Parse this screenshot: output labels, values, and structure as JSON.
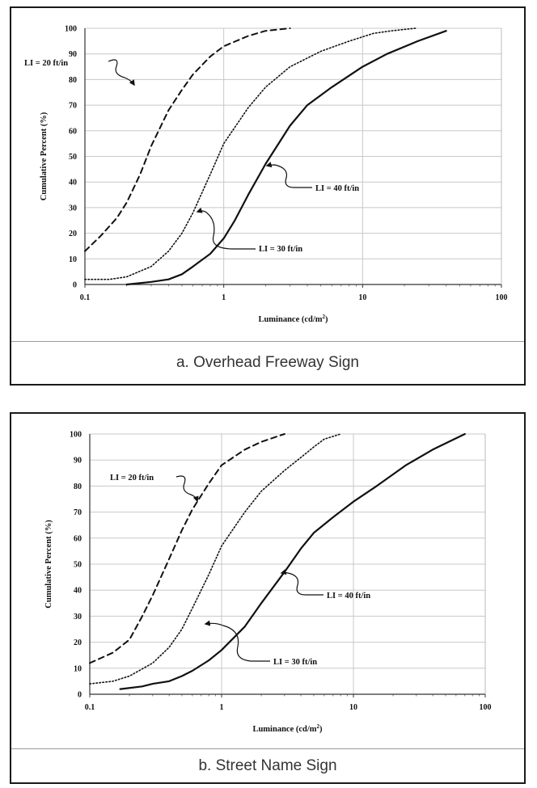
{
  "chart_data": [
    {
      "type": "line",
      "caption": "a. Overhead Freeway Sign",
      "xlabel": "Luminance (cd/m",
      "xlabel_sup": "2",
      "xlabel_end": ")",
      "ylabel": "Cumulative Percent (%)",
      "xscale": "log",
      "xlim": [
        0.1,
        100
      ],
      "ylim": [
        0,
        100
      ],
      "xticks": [
        "0.1",
        "1",
        "10",
        "100"
      ],
      "yticks": [
        "0",
        "10",
        "20",
        "30",
        "40",
        "50",
        "60",
        "70",
        "80",
        "90",
        "100"
      ],
      "grid": true,
      "series": [
        {
          "name": "LI = 20 ft/in",
          "style": "dashed",
          "x": [
            0.1,
            0.13,
            0.17,
            0.2,
            0.25,
            0.3,
            0.4,
            0.5,
            0.6,
            0.8,
            1.0,
            1.5,
            2.0,
            3.0
          ],
          "y": [
            13,
            19,
            26,
            32,
            43,
            54,
            68,
            76,
            82,
            89,
            93,
            97,
            99,
            100
          ]
        },
        {
          "name": "LI = 30 ft/in",
          "style": "dotted",
          "x": [
            0.1,
            0.15,
            0.2,
            0.3,
            0.4,
            0.5,
            0.6,
            0.8,
            1.0,
            1.5,
            2.0,
            3.0,
            5.0,
            8.0,
            12.0,
            16.0,
            24.0
          ],
          "y": [
            2,
            2,
            3,
            7,
            13,
            20,
            28,
            43,
            55,
            69,
            77,
            85,
            91,
            95,
            98,
            99,
            100
          ]
        },
        {
          "name": "LI = 40 ft/in",
          "style": "solid",
          "x": [
            0.2,
            0.3,
            0.4,
            0.5,
            0.6,
            0.8,
            1.0,
            1.2,
            1.5,
            2.0,
            3.0,
            4.0,
            6.0,
            10.0,
            15.0,
            25.0,
            40.0
          ],
          "y": [
            0,
            1,
            2,
            4,
            7,
            12,
            18,
            25,
            35,
            47,
            62,
            70,
            77,
            85,
            90,
            95,
            99
          ]
        }
      ]
    },
    {
      "type": "line",
      "caption": "b. Street Name Sign",
      "xlabel": "Luminance (cd/m",
      "xlabel_sup": "2",
      "xlabel_end": ")",
      "ylabel": "Cumulative Percent (%)",
      "xscale": "log",
      "xlim": [
        0.1,
        100
      ],
      "ylim": [
        0,
        100
      ],
      "xticks": [
        "0.1",
        "1",
        "10",
        "100"
      ],
      "yticks": [
        "0",
        "10",
        "20",
        "30",
        "40",
        "50",
        "60",
        "70",
        "80",
        "90",
        "100"
      ],
      "grid": true,
      "series": [
        {
          "name": "LI = 20 ft/in",
          "style": "dashed",
          "x": [
            0.1,
            0.15,
            0.2,
            0.25,
            0.3,
            0.4,
            0.5,
            0.6,
            0.8,
            1.0,
            1.5,
            2.0,
            3.0
          ],
          "y": [
            12,
            16,
            21,
            30,
            38,
            52,
            63,
            71,
            81,
            88,
            94,
            97,
            100
          ]
        },
        {
          "name": "LI = 30 ft/in",
          "style": "dotted",
          "x": [
            0.1,
            0.15,
            0.2,
            0.3,
            0.4,
            0.5,
            0.6,
            0.8,
            1.0,
            1.5,
            2.0,
            3.0,
            4.0,
            5.0,
            6.0,
            8.0
          ],
          "y": [
            4,
            5,
            7,
            12,
            18,
            25,
            33,
            46,
            57,
            70,
            78,
            86,
            91,
            95,
            98,
            100
          ]
        },
        {
          "name": "LI = 40 ft/in",
          "style": "solid",
          "x": [
            0.17,
            0.25,
            0.3,
            0.4,
            0.5,
            0.6,
            0.8,
            1.0,
            1.5,
            2.0,
            3.0,
            4.0,
            5.0,
            7.0,
            10.0,
            15.0,
            25.0,
            40.0,
            70.0
          ],
          "y": [
            2,
            3,
            4,
            5,
            7,
            9,
            13,
            17,
            26,
            35,
            47,
            56,
            62,
            68,
            74,
            80,
            88,
            94,
            100
          ]
        }
      ]
    }
  ]
}
